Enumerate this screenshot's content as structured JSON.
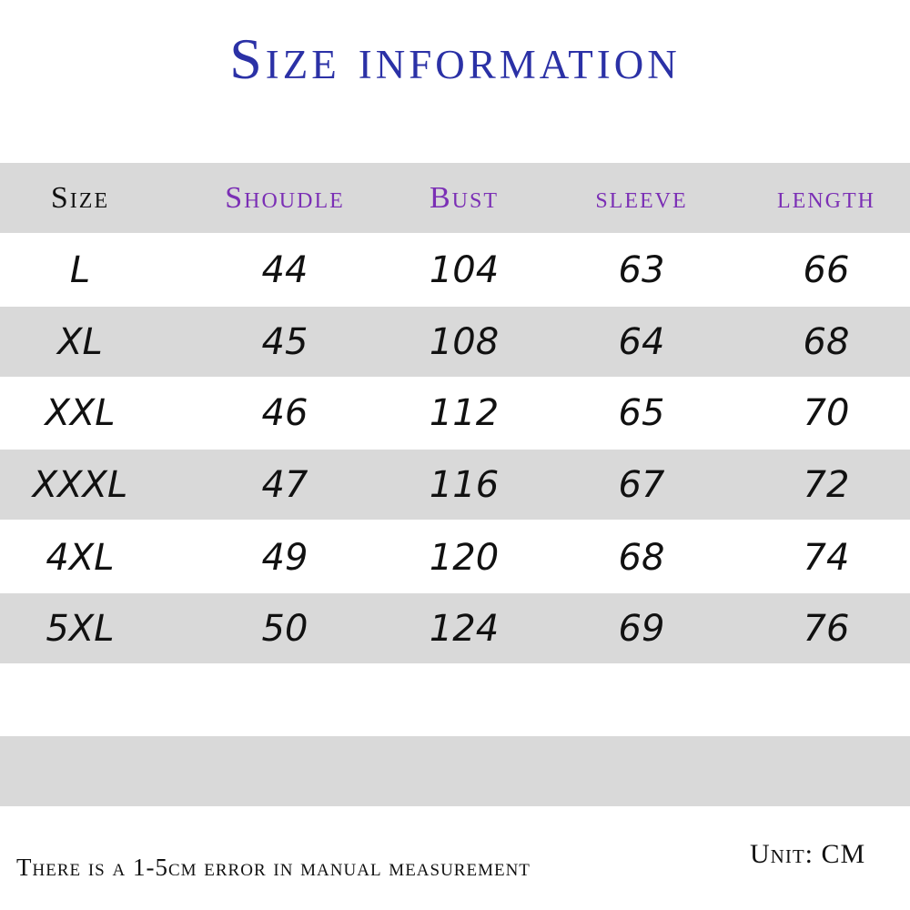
{
  "title": "Size information",
  "headers": [
    "Size",
    "Shoudle",
    "Bust",
    "sleeve",
    "length"
  ],
  "rows": [
    [
      "L",
      "44",
      "104",
      "63",
      "66"
    ],
    [
      "XL",
      "45",
      "108",
      "64",
      "68"
    ],
    [
      "XXL",
      "46",
      "112",
      "65",
      "70"
    ],
    [
      "XXXL",
      "47",
      "116",
      "67",
      "72"
    ],
    [
      "4XL",
      "49",
      "120",
      "68",
      "74"
    ],
    [
      "5XL",
      "50",
      "124",
      "69",
      "76"
    ]
  ],
  "note": "There is a 1-5cm error in manual measurement",
  "unit": "Unit: CM",
  "colors": {
    "title": "#2b31a6",
    "header_measure": "#7b2fb5",
    "band": "#d9d9d9"
  }
}
